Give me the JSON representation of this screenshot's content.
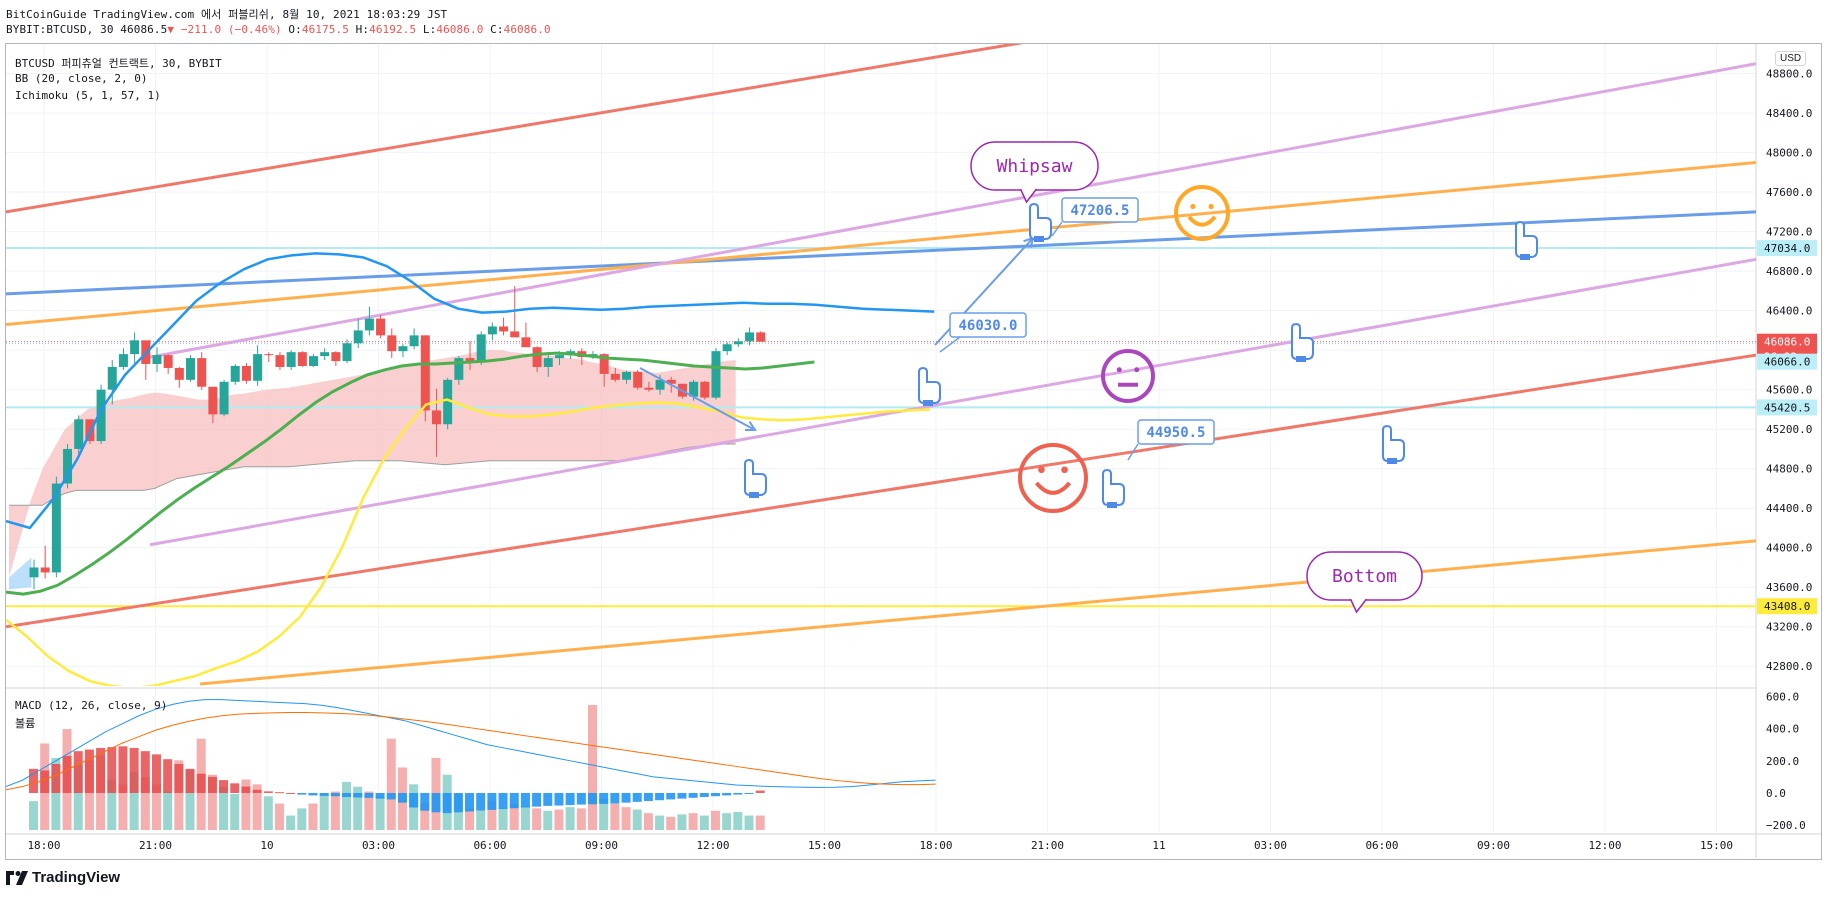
{
  "header": {
    "publisher": "BitCoinGuide TradingView.com 에서 퍼블리쉬, 8월 10, 2021 18:03:29 JST",
    "symbol": "BYBIT:BTCUSD, 30",
    "last": "46086.5",
    "change": "−211.0 (−0.46%)",
    "o_label": "O:",
    "o_value": "46175.5",
    "h_label": "H:",
    "h_value": "46192.5",
    "l_label": "L:",
    "l_value": "46086.0",
    "c_label": "C:",
    "c_value": "46086.0"
  },
  "legend": {
    "line1": "BTCUSD 퍼피츄얼 컨트랙트, 30, BYBIT",
    "line2": "BB (20, close, 2, 0)",
    "line3": "Ichimoku (5, 1, 57, 1)",
    "macd": "MACD (12, 26, close, 9)",
    "volume": "볼륨"
  },
  "currency": "USD",
  "brand": "TradingView",
  "colors": {
    "up": "#26a69a",
    "down": "#ef5350",
    "bb": "#2196f3",
    "ichimoku_base": "#4caf50",
    "ichimoku_lead": "#ffeb3b",
    "cloud": "#f8bbbb",
    "trend_red": "#f07869",
    "trend_orange": "#ffb04d",
    "trend_violet": "#dca8e3",
    "trend_blue": "#6a9de8",
    "macd_line": "#2196f3",
    "signal_line": "#ff6d00"
  },
  "annotations": {
    "whipsaw": "Whipsaw",
    "bottom": "Bottom",
    "label_1": "47206.5",
    "label_2": "46030.0",
    "label_3": "44950.5"
  },
  "chart_data": [
    {
      "type": "candlestick",
      "title": "BTCUSD 퍼피츄얼 컨트랙트, 30, BYBIT",
      "x_ticks": [
        "18:00",
        "21:00",
        "10",
        "03:00",
        "06:00",
        "09:00",
        "12:00",
        "15:00",
        "18:00",
        "21:00",
        "11",
        "03:00",
        "06:00",
        "09:00",
        "12:00",
        "15:00"
      ],
      "y_ticks": [
        48800.0,
        48400.0,
        48000.0,
        47600.0,
        47200.0,
        46800.0,
        46400.0,
        46000.0,
        45600.0,
        45200.0,
        44800.0,
        44400.0,
        44000.0,
        43600.0,
        43200.0,
        42800.0
      ],
      "ylim": [
        42600,
        49100
      ],
      "price_labels": [
        {
          "value": "47034.0",
          "kind": "level"
        },
        {
          "value": "46086.0",
          "kind": "last"
        },
        {
          "value": "26:32",
          "kind": "countdown"
        },
        {
          "value": "46066.0",
          "kind": "level"
        },
        {
          "value": "45420.5",
          "kind": "level"
        },
        {
          "value": "43408.0",
          "kind": "level-yellow"
        }
      ],
      "horizontal_levels": [
        47034.0,
        45420.5,
        43408.0
      ],
      "candles": [
        [
          43700,
          43880,
          43580,
          43800
        ],
        [
          43800,
          44020,
          43690,
          43750
        ],
        [
          43750,
          44720,
          43700,
          44650
        ],
        [
          44650,
          45050,
          44600,
          45000
        ],
        [
          45000,
          45340,
          44950,
          45300
        ],
        [
          45300,
          45250,
          45050,
          45080
        ],
        [
          45080,
          45650,
          45050,
          45600
        ],
        [
          45600,
          45900,
          45450,
          45830
        ],
        [
          45830,
          46020,
          45800,
          45960
        ],
        [
          45960,
          46180,
          45850,
          46100
        ],
        [
          46100,
          46080,
          45700,
          45860
        ],
        [
          45860,
          46030,
          45780,
          45950
        ],
        [
          45950,
          45960,
          45760,
          45820
        ],
        [
          45820,
          45830,
          45620,
          45700
        ],
        [
          45700,
          45950,
          45680,
          45920
        ],
        [
          45920,
          45980,
          45600,
          45630
        ],
        [
          45630,
          45580,
          45260,
          45350
        ],
        [
          45350,
          45700,
          45330,
          45680
        ],
        [
          45680,
          45860,
          45650,
          45840
        ],
        [
          45840,
          45870,
          45660,
          45690
        ],
        [
          45690,
          46050,
          45640,
          45960
        ],
        [
          45960,
          45980,
          45880,
          45950
        ],
        [
          45950,
          45980,
          45800,
          45830
        ],
        [
          45830,
          46000,
          45800,
          45980
        ],
        [
          45980,
          45990,
          45830,
          45840
        ],
        [
          45840,
          45960,
          45830,
          45940
        ],
        [
          45940,
          46020,
          45900,
          45980
        ],
        [
          45980,
          45990,
          45840,
          45890
        ],
        [
          45890,
          46110,
          45870,
          46070
        ],
        [
          46070,
          46320,
          46020,
          46200
        ],
        [
          46200,
          46440,
          46150,
          46320
        ],
        [
          46320,
          46360,
          46120,
          46150
        ],
        [
          46150,
          46220,
          45920,
          45990
        ],
        [
          45990,
          46060,
          45930,
          46040
        ],
        [
          46040,
          46220,
          46010,
          46150
        ],
        [
          46150,
          46150,
          45280,
          45390
        ],
        [
          45390,
          45610,
          44920,
          45250
        ],
        [
          45250,
          45720,
          45200,
          45700
        ],
        [
          45700,
          45940,
          45650,
          45920
        ],
        [
          45920,
          46090,
          45800,
          45890
        ],
        [
          45890,
          46190,
          45850,
          46160
        ],
        [
          46160,
          46280,
          46100,
          46240
        ],
        [
          46240,
          46330,
          46150,
          46190
        ],
        [
          46190,
          46650,
          46140,
          46130
        ],
        [
          46130,
          46280,
          46040,
          46030
        ],
        [
          46030,
          46040,
          45780,
          45830
        ],
        [
          45830,
          45960,
          45730,
          45920
        ],
        [
          45920,
          45990,
          45850,
          45950
        ],
        [
          45950,
          46010,
          45910,
          45990
        ],
        [
          45990,
          46020,
          45850,
          45930
        ],
        [
          45930,
          45990,
          45910,
          45960
        ],
        [
          45960,
          45970,
          45630,
          45760
        ],
        [
          45760,
          45820,
          45680,
          45700
        ],
        [
          45700,
          45790,
          45660,
          45780
        ],
        [
          45780,
          45800,
          45600,
          45620
        ],
        [
          45620,
          45680,
          45580,
          45600
        ],
        [
          45600,
          45750,
          45550,
          45700
        ],
        [
          45700,
          45730,
          45570,
          45660
        ],
        [
          45660,
          45660,
          45510,
          45530
        ],
        [
          45530,
          45700,
          45490,
          45680
        ],
        [
          45680,
          45690,
          45500,
          45520
        ],
        [
          45520,
          46020,
          45500,
          45990
        ],
        [
          45990,
          46080,
          45950,
          46060
        ],
        [
          46060,
          46120,
          46030,
          46090
        ],
        [
          46090,
          46230,
          46050,
          46180
        ],
        [
          46180,
          46192,
          46086,
          46086
        ]
      ],
      "bollinger": {
        "upper": [
          44270,
          44200,
          44500,
          44900,
          45400,
          45750,
          46000,
          46250,
          46500,
          46680,
          46820,
          46920,
          46960,
          46980,
          46970,
          46940,
          46850,
          46700,
          46520,
          46420,
          46380,
          46390,
          46420,
          46430,
          46420,
          46410,
          46420,
          46440,
          46450,
          46460,
          46470,
          46480,
          46470,
          46470,
          46460,
          46440,
          46420,
          46410,
          46400,
          46390
        ],
        "note": "upper band only drawn in view"
      },
      "ichimoku_base": [
        43550,
        43530,
        43560,
        43620,
        43720,
        43830,
        43950,
        44080,
        44220,
        44360,
        44490,
        44610,
        44720,
        44830,
        44950,
        45070,
        45200,
        45340,
        45470,
        45580,
        45670,
        45750,
        45800,
        45840,
        45860,
        45860,
        45870,
        45880,
        45890,
        45910,
        45940,
        45960,
        45970,
        45960,
        45940,
        45920,
        45910,
        45900,
        45880,
        45860,
        45840,
        45830,
        45820,
        45810,
        45820,
        45840,
        45860,
        45880
      ],
      "ichimoku_lead": [
        43270,
        43100,
        42900,
        42750,
        42650,
        42600,
        42580,
        42600,
        42650,
        42700,
        42780,
        42850,
        42950,
        43100,
        43300,
        43600,
        44000,
        44500,
        44900,
        45200,
        45450,
        45500,
        45420,
        45350,
        45330,
        45330,
        45350,
        45380,
        45420,
        45440,
        45460,
        45470,
        45460,
        45420,
        45380,
        45320,
        45300,
        45290,
        45300,
        45320,
        45340,
        45360,
        45380,
        45390,
        45400
      ],
      "cloud_upper": [
        43700,
        44100,
        44500,
        44800,
        45000,
        45200,
        45300,
        45400,
        45450,
        45480,
        45500,
        45520,
        45550,
        45570,
        45560,
        45540,
        45520,
        45500,
        45500,
        45520,
        45550,
        45560,
        45580,
        45600,
        45610,
        45620,
        45640,
        45660,
        45680,
        45700,
        45720,
        45740,
        45760,
        45790,
        45820,
        45840,
        45860,
        45880,
        45900,
        45920,
        45940,
        45960,
        45990,
        46000,
        46000,
        45980,
        45970,
        45950,
        45950,
        45940,
        45920,
        45910,
        45880,
        45860,
        45830,
        45800,
        45790,
        45780,
        45770,
        45790,
        45810,
        45830,
        45850,
        45870,
        45890,
        45900
      ],
      "cloud_lower": [
        44430,
        44430,
        44430,
        44430,
        44500,
        44550,
        44580,
        44580,
        44580,
        44580,
        44580,
        44580,
        44580,
        44600,
        44650,
        44700,
        44720,
        44740,
        44760,
        44780,
        44800,
        44820,
        44820,
        44820,
        44820,
        44820,
        44830,
        44840,
        44850,
        44860,
        44870,
        44880,
        44880,
        44880,
        44880,
        44880,
        44870,
        44860,
        44850,
        44840,
        44850,
        44860,
        44870,
        44880,
        44880,
        44880,
        44880,
        44880,
        44880,
        44880,
        44880,
        44880,
        44880,
        44880,
        44880,
        44880,
        44900,
        44920,
        44950,
        44980,
        45000,
        45020,
        45030,
        45040,
        45050,
        45050
      ]
    },
    {
      "type": "bar+line",
      "title": "MACD (12, 26, close, 9)",
      "y_ticks": [
        600.0,
        400.0,
        200.0,
        0.0,
        -200.0
      ],
      "ylim": [
        -230,
        640
      ],
      "histogram": [
        150,
        140,
        180,
        230,
        260,
        270,
        280,
        285,
        290,
        280,
        260,
        240,
        210,
        180,
        150,
        120,
        100,
        80,
        60,
        40,
        20,
        10,
        5,
        0,
        -10,
        -15,
        -18,
        -20,
        -25,
        -28,
        -30,
        -35,
        -40,
        -60,
        -90,
        -110,
        -120,
        -125,
        -120,
        -115,
        -110,
        -105,
        -100,
        -95,
        -90,
        -85,
        -80,
        -78,
        -75,
        -72,
        -70,
        -68,
        -65,
        -60,
        -55,
        -50,
        -45,
        -40,
        -35,
        -30,
        -25,
        -20,
        -15,
        -10,
        -5,
        15
      ],
      "macd_line": [
        40,
        80,
        140,
        200,
        260,
        320,
        380,
        430,
        480,
        520,
        550,
        570,
        580,
        580,
        575,
        570,
        565,
        560,
        555,
        545,
        530,
        510,
        490,
        470,
        450,
        420,
        390,
        360,
        330,
        300,
        280,
        260,
        240,
        220,
        200,
        180,
        160,
        140,
        120,
        100,
        90,
        80,
        70,
        60,
        50,
        45,
        40,
        38,
        36,
        35,
        36,
        40,
        50,
        60,
        70,
        75,
        80
      ],
      "signal_line": [
        20,
        40,
        70,
        110,
        160,
        210,
        260,
        310,
        350,
        390,
        420,
        445,
        465,
        480,
        490,
        495,
        498,
        500,
        500,
        498,
        495,
        490,
        482,
        472,
        460,
        448,
        435,
        420,
        405,
        390,
        375,
        360,
        345,
        330,
        315,
        300,
        285,
        270,
        255,
        240,
        225,
        210,
        195,
        180,
        165,
        150,
        135,
        120,
        105,
        90,
        78,
        68,
        60,
        55,
        52,
        52,
        55
      ],
      "volume": [
        120,
        360,
        300,
        420,
        270,
        290,
        310,
        210,
        190,
        240,
        220,
        190,
        160,
        290,
        250,
        380,
        230,
        180,
        150,
        210,
        190,
        140,
        110,
        60,
        90,
        110,
        150,
        160,
        200,
        180,
        160,
        140,
        380,
        260,
        190,
        110,
        300,
        230,
        150,
        90,
        80,
        120,
        90,
        110,
        100,
        90,
        80,
        85,
        95,
        90,
        520,
        130,
        110,
        95,
        85,
        70,
        60,
        55,
        65,
        70,
        60,
        80,
        70,
        75,
        60,
        60
      ],
      "volume_colors": [
        "up",
        "down",
        "up",
        "down",
        "up",
        "down",
        "down",
        "up",
        "down",
        "up",
        "down",
        "down",
        "up",
        "down",
        "up",
        "down",
        "down",
        "up",
        "up",
        "down",
        "down",
        "up",
        "down",
        "up",
        "up",
        "down",
        "up",
        "down",
        "up",
        "up",
        "down",
        "up",
        "down",
        "down",
        "up",
        "down",
        "down",
        "up",
        "up",
        "down",
        "up",
        "down",
        "up",
        "down",
        "up",
        "down",
        "up",
        "down",
        "up",
        "down",
        "down",
        "up",
        "down",
        "down",
        "up",
        "down",
        "up",
        "down",
        "up",
        "down",
        "up",
        "down",
        "up",
        "up",
        "up",
        "down"
      ]
    }
  ]
}
